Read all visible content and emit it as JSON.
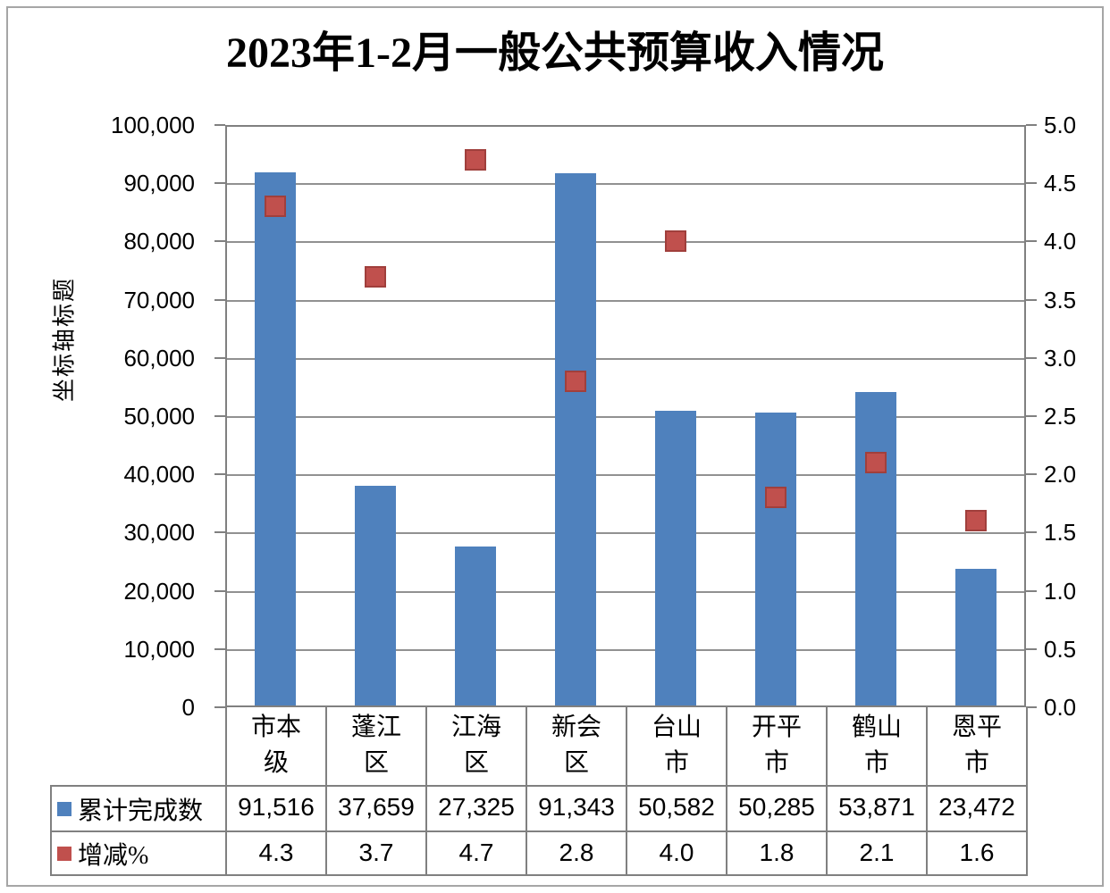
{
  "chart_data": {
    "type": "bar",
    "subtype": "combo-bar-and-scatter-markers",
    "title": "2023年1-2月一般公共预算收入情况",
    "categories": [
      "市本级",
      "蓬江区",
      "江海区",
      "新会区",
      "台山市",
      "开平市",
      "鹤山市",
      "恩平市"
    ],
    "category_label_lines": [
      "市本\n级",
      "蓬江\n区",
      "江海\n区",
      "新会\n区",
      "台山\n市",
      "开平\n市",
      "鹤山\n市",
      "恩平\n市"
    ],
    "series": [
      {
        "name": "累计完成数",
        "chart_type": "bar",
        "axis": "left",
        "color": "#4F81BD",
        "values": [
          91516,
          37659,
          27325,
          91343,
          50582,
          50285,
          53871,
          23472
        ],
        "labels": [
          "91,516",
          "37,659",
          "27,325",
          "91,343",
          "50,582",
          "50,285",
          "53,871",
          "23,472"
        ]
      },
      {
        "name": "增减%",
        "chart_type": "scatter",
        "axis": "right",
        "color": "#C0504D",
        "values": [
          4.3,
          3.7,
          4.7,
          2.8,
          4.0,
          1.8,
          2.1,
          1.6
        ],
        "labels": [
          "4.3",
          "3.7",
          "4.7",
          "2.8",
          "4.0",
          "1.8",
          "2.1",
          "1.6"
        ]
      }
    ],
    "left_axis": {
      "title": "坐标轴标题",
      "min": 0,
      "max": 100000,
      "step": 10000,
      "tick_labels": [
        "100,000",
        "90,000",
        "80,000",
        "70,000",
        "60,000",
        "50,000",
        "40,000",
        "30,000",
        "20,000",
        "10,000",
        "0"
      ]
    },
    "right_axis": {
      "min": 0.0,
      "max": 5.0,
      "step": 0.5,
      "tick_labels": [
        "5.0",
        "4.5",
        "4.0",
        "3.5",
        "3.0",
        "2.5",
        "2.0",
        "1.5",
        "1.0",
        "0.5",
        "0.0"
      ]
    },
    "grid": true,
    "legend_position": "table-left-column",
    "colors": {
      "bar": "#4F81BD",
      "marker": "#C0504D",
      "marker_border": "#A03F3C",
      "gridline": "#919191",
      "axis_border": "#808080",
      "outer_border": "#A6A6A6",
      "text": "#000000",
      "background": "#FFFFFF"
    }
  }
}
